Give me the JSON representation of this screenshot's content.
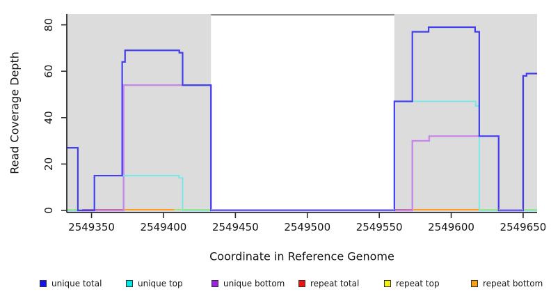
{
  "figure": {
    "x_axis_label": "Coordinate in Reference Genome",
    "y_axis_label": "Read Coverage Depth"
  },
  "colors": {
    "background": "#ffffff",
    "repeat_region_fill": "#dcdcdc",
    "gap_marker": "#8d8d8d",
    "axis": "#2b2b2b",
    "tick_label": "#141414"
  },
  "legend": {
    "items": [
      {
        "label": "unique total",
        "color": "#1414f0"
      },
      {
        "label": "unique top",
        "color": "#00e6e6"
      },
      {
        "label": "unique bottom",
        "color": "#9c20e8"
      },
      {
        "label": "repeat total",
        "color": "#ee1111"
      },
      {
        "label": "repeat top",
        "color": "#f2f20a"
      },
      {
        "label": "repeat bottom",
        "color": "#f5a014"
      }
    ]
  },
  "chart_data": {
    "type": "line",
    "subtype": "step-coverage",
    "title": "",
    "xlabel": "Coordinate in Reference Genome",
    "ylabel": "Read Coverage Depth",
    "xlim": [
      2549332.8,
      2549659.7
    ],
    "ylim": [
      0,
      84.7
    ],
    "grid": false,
    "legend_position": "bottom",
    "x_ticks": [
      2549350,
      2549400,
      2549450,
      2549500,
      2549550,
      2549600,
      2549650
    ],
    "y_ticks": [
      0,
      20,
      40,
      60,
      80
    ],
    "repeat_regions": [
      [
        2549332.8,
        2549433.0
      ],
      [
        2549560.5,
        2549659.7
      ]
    ],
    "gap_marker": [
      2549433.0,
      2549560.5
    ],
    "series": [
      {
        "name": "unique total",
        "color": "#4240ec",
        "width": 2.2,
        "steps": [
          [
            2549332.8,
            27
          ],
          [
            2549340.5,
            0
          ],
          [
            2549352.0,
            15
          ],
          [
            2549371.3,
            64
          ],
          [
            2549373.3,
            69
          ],
          [
            2549411.0,
            68
          ],
          [
            2549413.3,
            54
          ],
          [
            2549433.0,
            0
          ],
          [
            2549560.5,
            47
          ],
          [
            2549573.0,
            77
          ],
          [
            2549584.3,
            79
          ],
          [
            2549616.6,
            77
          ],
          [
            2549619.5,
            32
          ],
          [
            2549633.0,
            0
          ],
          [
            2549650.0,
            58
          ],
          [
            2549652.4,
            59
          ]
        ]
      },
      {
        "name": "unique top",
        "color": "#70e8e8",
        "width": 1.8,
        "steps": [
          [
            2549332.8,
            0
          ],
          [
            2549352.0,
            15
          ],
          [
            2549410.8,
            14
          ],
          [
            2549413.3,
            0
          ],
          [
            2549560.5,
            47
          ],
          [
            2549617.0,
            45
          ],
          [
            2549619.5,
            0
          ]
        ]
      },
      {
        "name": "unique bottom",
        "color": "#c688e8",
        "width": 2.4,
        "steps": [
          [
            2549332.8,
            0
          ],
          [
            2549372.3,
            54
          ],
          [
            2549433.0,
            0
          ],
          [
            2549573.0,
            30
          ],
          [
            2549584.7,
            32
          ],
          [
            2549633.0,
            0
          ],
          [
            2549650.0,
            58
          ],
          [
            2549652.4,
            59
          ]
        ]
      },
      {
        "name": "repeat total",
        "color": "#cd5b69",
        "width": 2,
        "value": 0,
        "zero_segments": [
          [
            2549343.5,
            2549372.0
          ],
          [
            2549560.5,
            2549572.6
          ]
        ]
      },
      {
        "name": "repeat top",
        "color": "#e8e800",
        "width": 2,
        "value": 0,
        "zero_segments": []
      },
      {
        "name": "repeat bottom",
        "color": "#ff9e1e",
        "width": 2,
        "value": 0,
        "zero_segments": [
          [
            2549372.0,
            2549407.5
          ],
          [
            2549573.0,
            2549619.5
          ]
        ]
      }
    ],
    "zero_overlays": [
      {
        "name": "cyan-yellow-overlap",
        "color": "#98e698",
        "segments": [
          [
            2549332.8,
            2549340.5
          ],
          [
            2549407.5,
            2549433.0
          ],
          [
            2549619.5,
            2549633.0
          ],
          [
            2549650.8,
            2549659.7
          ]
        ]
      },
      {
        "name": "blue-purple-overlap",
        "color": "#9e97ee",
        "segments": [
          [
            2549433.0,
            2549560.5
          ],
          [
            2549633.0,
            2549650.0
          ]
        ]
      }
    ]
  }
}
